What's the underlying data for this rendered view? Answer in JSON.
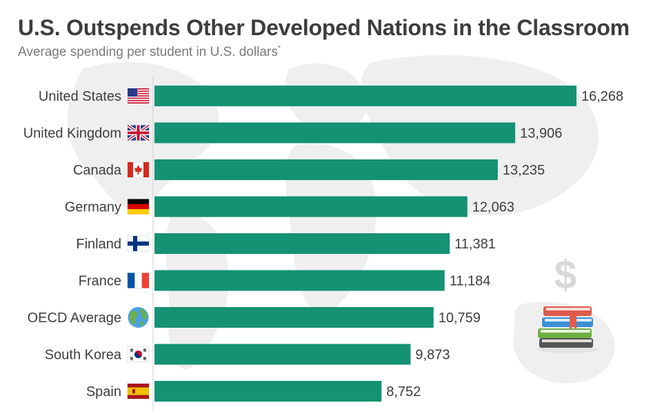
{
  "header": {
    "title": "U.S. Outspends Other Developed Nations in the Classroom",
    "subtitle": "Average spending per student in U.S. dollars",
    "subtitle_mark": "*"
  },
  "colors": {
    "bar": "#149273",
    "label": "#3d3d3d",
    "map": "#efefef",
    "axis": "#cfcfcf"
  },
  "chart_data": {
    "type": "bar",
    "orientation": "horizontal",
    "categories": [
      "United States",
      "United Kingdom",
      "Canada",
      "Germany",
      "Finland",
      "France",
      "OECD Average",
      "South Korea",
      "Spain"
    ],
    "values": [
      16268,
      13906,
      13235,
      12063,
      11381,
      11184,
      10759,
      9873,
      8752
    ],
    "value_labels": [
      "16,268",
      "13,906",
      "13,235",
      "12,063",
      "11,381",
      "11,184",
      "10,759",
      "9,873",
      "8,752"
    ],
    "icons": [
      "us-flag-icon",
      "uk-flag-icon",
      "canada-flag-icon",
      "germany-flag-icon",
      "finland-flag-icon",
      "france-flag-icon",
      "globe-icon",
      "south-korea-flag-icon",
      "spain-flag-icon"
    ],
    "xlim": [
      0,
      16268
    ],
    "grid": false,
    "legend": "none"
  }
}
